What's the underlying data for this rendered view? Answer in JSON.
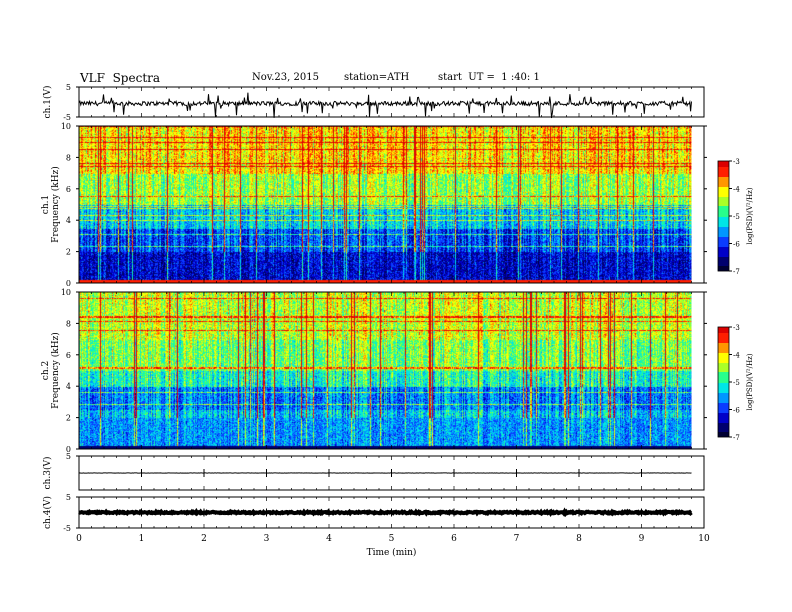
{
  "header": {
    "title": "VLF  Spectra",
    "date": "Nov.23, 2015",
    "station": "station=ATH",
    "start": "start  UT =  1 :40: 1"
  },
  "chart_data": [
    {
      "type": "line",
      "ylabel": "ch.1(V)",
      "ylim": [
        -5,
        5
      ],
      "yticks": [
        "5",
        "-5"
      ],
      "description_of_trace": "noisy waveform around -0.5 V with negative spikes",
      "baseline": -0.5
    },
    {
      "type": "heatmap",
      "ylabel": [
        "ch.1",
        "Frequency  (kHz)"
      ],
      "ylim": [
        0,
        10
      ],
      "yticks": [
        "0",
        "2",
        "4",
        "6",
        "8",
        "10"
      ],
      "colorbar": {
        "label": "log(PSD)(V²/Hz)",
        "range": [
          -7,
          -3
        ],
        "ticks": [
          "-3",
          "-4",
          "-5",
          "-6",
          "-7"
        ]
      }
    },
    {
      "type": "heatmap",
      "ylabel": [
        "ch.2",
        "Frequency  (kHz)"
      ],
      "ylim": [
        0,
        10
      ],
      "yticks": [
        "0",
        "2",
        "4",
        "6",
        "8",
        "10"
      ],
      "colorbar": {
        "label": "log(PSD)(V²/Hz)",
        "range": [
          -7,
          -3
        ],
        "ticks": [
          "-3",
          "-4",
          "-5",
          "-6",
          "-7"
        ]
      }
    },
    {
      "type": "line",
      "ylabel": "ch.3(V)",
      "ylim": [
        -5,
        5
      ],
      "yticks": [
        "5"
      ],
      "baseline": 0
    },
    {
      "type": "line",
      "ylabel": "ch.4(V)",
      "ylim": [
        -5,
        5
      ],
      "yticks": [
        "5",
        "-5"
      ],
      "baseline": 0
    }
  ],
  "xaxis": {
    "label": "Time  (min)",
    "range": [
      0,
      10
    ],
    "ticks": [
      "0",
      "1",
      "2",
      "3",
      "4",
      "5",
      "6",
      "7",
      "8",
      "9",
      "10"
    ],
    "data_end": 9.8
  },
  "colors": {
    "colormap": [
      "#000033",
      "#00006e",
      "#0000c8",
      "#0a3cff",
      "#0096ff",
      "#00e6e6",
      "#28ff8c",
      "#aaff28",
      "#ffff00",
      "#ff9600",
      "#ff1e00",
      "#dc0000",
      "#ffffff"
    ]
  }
}
